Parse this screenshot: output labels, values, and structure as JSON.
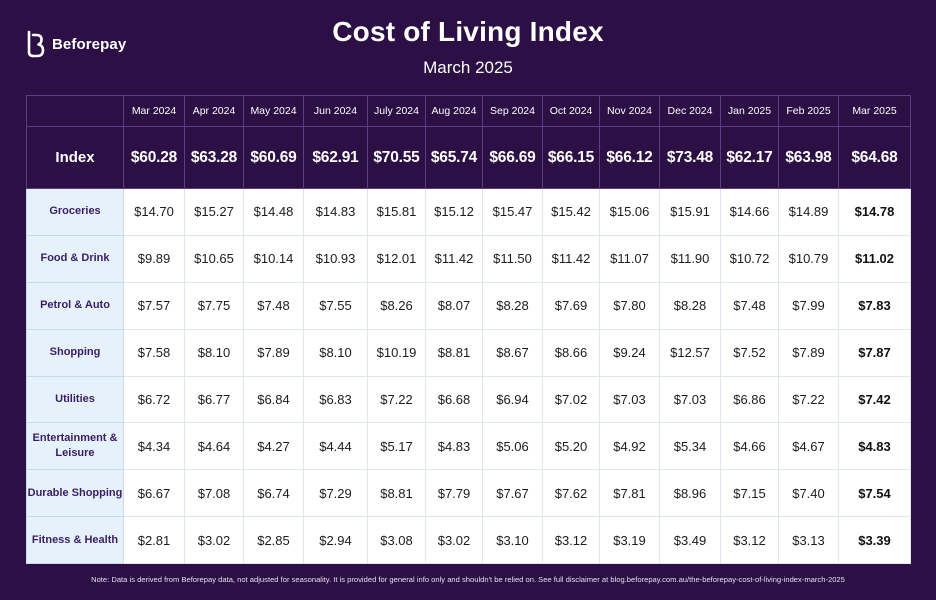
{
  "brand": {
    "name": "Beforepay",
    "accent": "#2b0f45",
    "highlight": "#e5f2fc"
  },
  "title": "Cost of Living Index",
  "subtitle": "March 2025",
  "chart_data": {
    "type": "table",
    "columns": [
      "Mar 2024",
      "Apr 2024",
      "May 2024",
      "Jun 2024",
      "July 2024",
      "Aug 2024",
      "Sep 2024",
      "Oct 2024",
      "Nov 2024",
      "Dec 2024",
      "Jan 2025",
      "Feb 2025",
      "Mar 2025"
    ],
    "index": {
      "label": "Index",
      "values": [
        "$60.28",
        "$63.28",
        "$60.69",
        "$62.91",
        "$70.55",
        "$65.74",
        "$66.69",
        "$66.15",
        "$66.12",
        "$73.48",
        "$62.17",
        "$63.98",
        "$64.68"
      ]
    },
    "rows": [
      {
        "label": "Groceries",
        "values": [
          "$14.70",
          "$15.27",
          "$14.48",
          "$14.83",
          "$15.81",
          "$15.12",
          "$15.47",
          "$15.42",
          "$15.06",
          "$15.91",
          "$14.66",
          "$14.89",
          "$14.78"
        ]
      },
      {
        "label": "Food & Drink",
        "values": [
          "$9.89",
          "$10.65",
          "$10.14",
          "$10.93",
          "$12.01",
          "$11.42",
          "$11.50",
          "$11.42",
          "$11.07",
          "$11.90",
          "$10.72",
          "$10.79",
          "$11.02"
        ]
      },
      {
        "label": "Petrol & Auto",
        "values": [
          "$7.57",
          "$7.75",
          "$7.48",
          "$7.55",
          "$8.26",
          "$8.07",
          "$8.28",
          "$7.69",
          "$7.80",
          "$8.28",
          "$7.48",
          "$7.99",
          "$7.83"
        ]
      },
      {
        "label": "Shopping",
        "values": [
          "$7.58",
          "$8.10",
          "$7.89",
          "$8.10",
          "$10.19",
          "$8.81",
          "$8.67",
          "$8.66",
          "$9.24",
          "$12.57",
          "$7.52",
          "$7.89",
          "$7.87"
        ]
      },
      {
        "label": "Utilities",
        "values": [
          "$6.72",
          "$6.77",
          "$6.84",
          "$6.83",
          "$7.22",
          "$6.68",
          "$6.94",
          "$7.02",
          "$7.03",
          "$7.03",
          "$6.86",
          "$7.22",
          "$7.42"
        ]
      },
      {
        "label": "Entertainment & Leisure",
        "values": [
          "$4.34",
          "$4.64",
          "$4.27",
          "$4.44",
          "$5.17",
          "$4.83",
          "$5.06",
          "$5.20",
          "$4.92",
          "$5.34",
          "$4.66",
          "$4.67",
          "$4.83"
        ]
      },
      {
        "label": "Durable Shopping",
        "values": [
          "$6.67",
          "$7.08",
          "$6.74",
          "$7.29",
          "$8.81",
          "$7.79",
          "$7.67",
          "$7.62",
          "$7.81",
          "$8.96",
          "$7.15",
          "$7.40",
          "$7.54"
        ]
      },
      {
        "label": "Fitness & Health",
        "values": [
          "$2.81",
          "$3.02",
          "$2.85",
          "$2.94",
          "$3.08",
          "$3.02",
          "$3.10",
          "$3.12",
          "$3.19",
          "$3.49",
          "$3.12",
          "$3.13",
          "$3.39"
        ]
      }
    ]
  },
  "footer_note": "Note: Data is derived from Beforepay data, not adjusted for seasonality. It is provided for general info only and shouldn't be relied on. See full disclaimer at blog.beforepay.com.au/the-beforepay-cost-of-living-index-march-2025"
}
